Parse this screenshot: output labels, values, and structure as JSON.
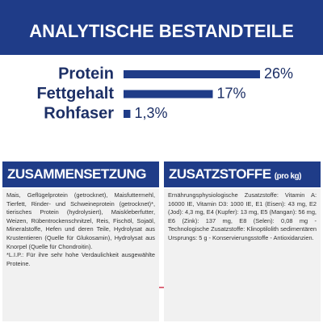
{
  "chart_data": {
    "type": "bar",
    "orientation": "horizontal",
    "title": "ANALYTISCHE BESTANDTEILE",
    "categories": [
      "Protein",
      "Fettgehalt",
      "Rohfaser"
    ],
    "values": [
      26,
      17,
      1.3
    ],
    "value_labels": [
      "26%",
      "17%",
      "1,3%"
    ],
    "color": "#1f3c88"
  },
  "sections": [
    {
      "title": "ZUSAMMENSETZUNG",
      "paragraphs": [
        "Mais, Geflügelprotein (getrocknet), Maisfuttermehl, Tierfett, Rinder- und Schweineprotein (getrocknet)*, tierisches Protein (hydrolysiert), Maiskleberfutter, Weizen, Rübentrockenschnitzel, Reis, Fischöl, Sojaöl, Mineralstoffe, Hefen und deren Teile, Hydrolysat aus Krustentieren (Quelle für Glukosamin), Hydrolysat aus Knorpel (Quelle für Chondroitin).",
        "*L.I.P.: Für ihre sehr hohe Verdaulichkeit ausgewählte Proteine."
      ]
    },
    {
      "title": "ZUSATZSTOFFE",
      "title_suffix": "(pro kg)",
      "paragraphs": [
        "Ernährungsphysiologische Zusatzstoffe: Vitamin A: 16000 IE, Vitamin D3: 1000 IE, E1 (Eisen): 43 mg, E2 (Jod): 4,3 mg, E4 (Kupfer): 13 mg, E5 (Mangan): 56 mg, E6 (Zink): 137 mg, E8 (Selen): 0,08 mg - Technologische Zusatzstoffe: Klinoptilolith sedimentären Ursprungs: 5 g - Konservierungsstoffe - Antioxidanzien."
      ]
    }
  ]
}
